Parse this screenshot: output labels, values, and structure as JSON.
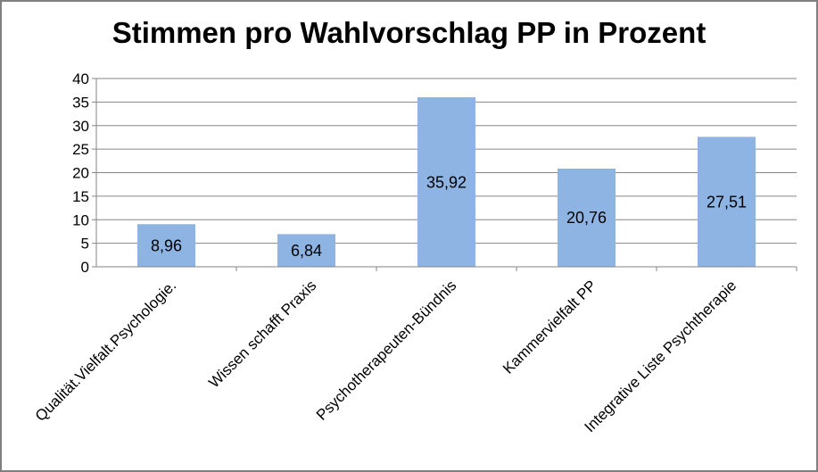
{
  "chart_data": {
    "type": "bar",
    "title": "Stimmen pro Wahlvorschlag PP in Prozent",
    "xlabel": "",
    "ylabel": "",
    "categories": [
      "Qualität.Vielfalt.Psychologie.",
      "Wissen schafft Praxis",
      "Psychotherapeuten-Bündnis",
      "Kammervielfalt PP",
      "Integrative Liste Psychtherapie"
    ],
    "values": [
      8.96,
      6.84,
      35.92,
      20.76,
      27.51
    ],
    "value_labels": [
      "8,96",
      "6,84",
      "35,92",
      "20,76",
      "27,51"
    ],
    "ylim": [
      0,
      40
    ],
    "yticks": [
      "0",
      "5",
      "10",
      "15",
      "20",
      "25",
      "30",
      "35",
      "40"
    ],
    "grid": true,
    "bar_color": "#8db4e2",
    "grid_color": "#868686"
  }
}
